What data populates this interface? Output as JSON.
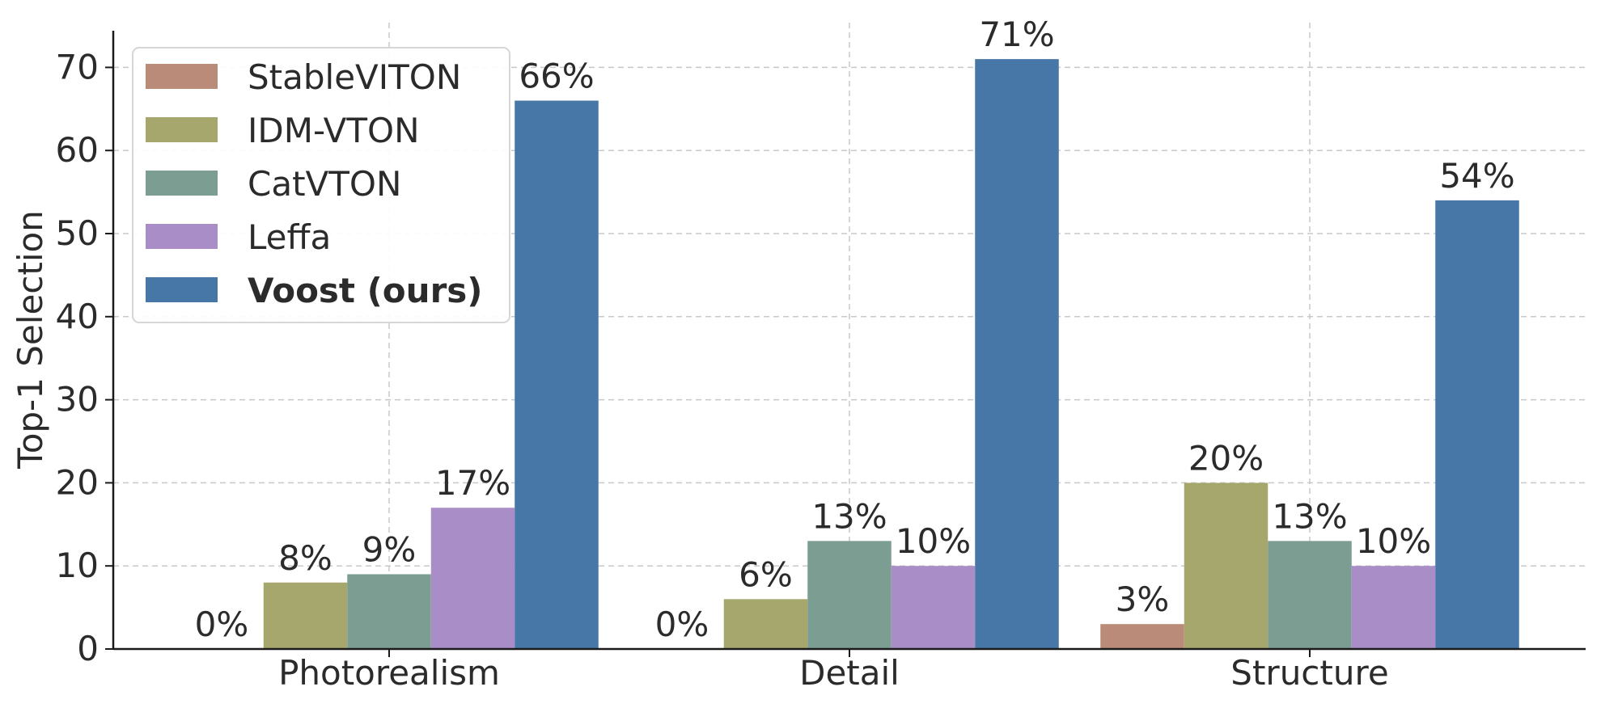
{
  "chart_data": {
    "type": "bar",
    "categories": [
      "Photorealism",
      "Detail",
      "Structure"
    ],
    "ylabel": "Top-1 Selection",
    "xlabel": "",
    "ylim": [
      0,
      75
    ],
    "yticks": [
      0,
      10,
      20,
      30,
      40,
      50,
      60,
      70
    ],
    "grid": true,
    "legend_position": "top-left",
    "series": [
      {
        "name": "StableVITON",
        "color": "#b98b78",
        "values": [
          0,
          0,
          3
        ],
        "labels": [
          "0%",
          "0%",
          "3%"
        ],
        "bold": false
      },
      {
        "name": "IDM-VTON",
        "color": "#a6a76d",
        "values": [
          8,
          6,
          20
        ],
        "labels": [
          "8%",
          "6%",
          "20%"
        ],
        "bold": false
      },
      {
        "name": "CatVTON",
        "color": "#7c9d91",
        "values": [
          9,
          13,
          13
        ],
        "labels": [
          "9%",
          "13%",
          "13%"
        ],
        "bold": false
      },
      {
        "name": "Leffa",
        "color": "#a98dc6",
        "values": [
          17,
          10,
          10
        ],
        "labels": [
          "17%",
          "10%",
          "10%"
        ],
        "bold": false
      },
      {
        "name": "Voost (ours)",
        "color": "#4677a6",
        "values": [
          66,
          71,
          54
        ],
        "labels": [
          "66%",
          "71%",
          "54%"
        ],
        "bold": true
      }
    ]
  }
}
